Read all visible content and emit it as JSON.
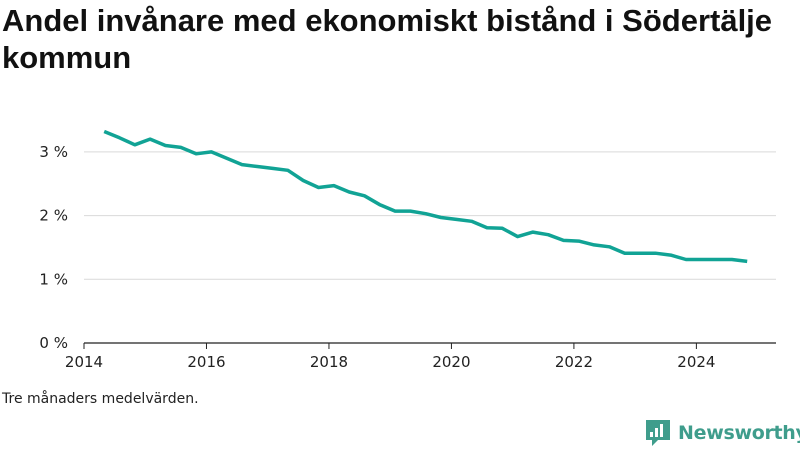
{
  "title": "Andel invånare med ekonomiskt bistånd i Södertälje kommun",
  "note": "Tre månaders medelvärden.",
  "brand": {
    "name": "Newsworthy",
    "icon": "newsworthy-logo-icon",
    "color": "#3f9d8c"
  },
  "colors": {
    "line": "#11a395",
    "grid": "#d9d9d9",
    "axis": "#222222"
  },
  "chart_data": {
    "type": "line",
    "title": "Andel invånare med ekonomiskt bistånd i Södertälje kommun",
    "xlabel": "",
    "ylabel": "",
    "xlim": [
      2014,
      2025.3
    ],
    "ylim": [
      0,
      3.5
    ],
    "grid": "horizontal",
    "x_ticks": [
      2014,
      2016,
      2018,
      2020,
      2022,
      2024
    ],
    "x_tick_labels": [
      "2014",
      "2016",
      "2018",
      "2020",
      "2022",
      "2024"
    ],
    "y_ticks": [
      0,
      1,
      2,
      3
    ],
    "y_tick_labels": [
      "0 %",
      "1 %",
      "2 %",
      "3 %"
    ],
    "series": [
      {
        "name": "",
        "x": [
          2014.33,
          2014.58,
          2014.83,
          2015.08,
          2015.33,
          2015.58,
          2015.83,
          2016.08,
          2016.33,
          2016.58,
          2016.83,
          2017.08,
          2017.33,
          2017.58,
          2017.83,
          2018.08,
          2018.33,
          2018.58,
          2018.83,
          2019.08,
          2019.33,
          2019.58,
          2019.83,
          2020.08,
          2020.33,
          2020.58,
          2020.83,
          2021.08,
          2021.33,
          2021.58,
          2021.83,
          2022.08,
          2022.33,
          2022.58,
          2022.83,
          2023.08,
          2023.33,
          2023.58,
          2023.83,
          2024.08,
          2024.33,
          2024.58,
          2024.83
        ],
        "y": [
          3.32,
          3.22,
          3.11,
          3.2,
          3.1,
          3.07,
          2.97,
          3.0,
          2.9,
          2.8,
          2.77,
          2.74,
          2.71,
          2.55,
          2.44,
          2.47,
          2.37,
          2.31,
          2.17,
          2.07,
          2.07,
          2.03,
          1.97,
          1.94,
          1.91,
          1.81,
          1.8,
          1.67,
          1.74,
          1.7,
          1.61,
          1.6,
          1.54,
          1.51,
          1.41,
          1.41,
          1.41,
          1.38,
          1.31,
          1.31,
          1.31,
          1.31,
          1.28
        ]
      }
    ]
  }
}
